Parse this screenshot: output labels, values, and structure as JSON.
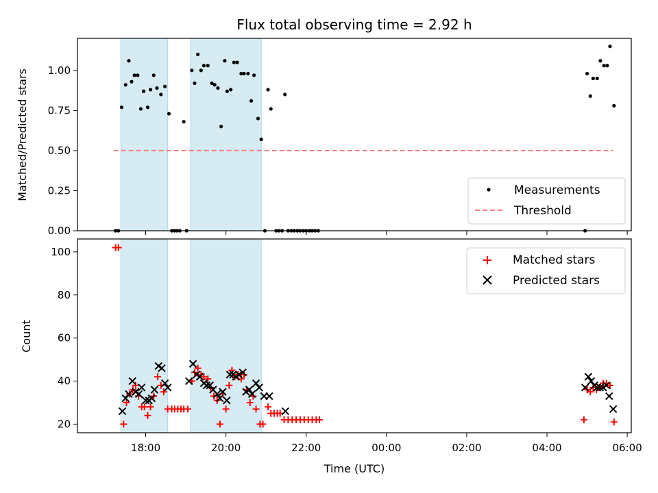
{
  "chart_data": {
    "type": "scatter",
    "title": "Flux total observing time = 2.92 h",
    "xlabel": "Time (UTC)",
    "x_range_hours": [
      16.3,
      30.1
    ],
    "x_ticks": [
      {
        "hour": 18,
        "label": "18:00"
      },
      {
        "hour": 20,
        "label": "20:00"
      },
      {
        "hour": 22,
        "label": "22:00"
      },
      {
        "hour": 24,
        "label": "00:00"
      },
      {
        "hour": 26,
        "label": "02:00"
      },
      {
        "hour": 28,
        "label": "04:00"
      },
      {
        "hour": 30,
        "label": "06:00"
      }
    ],
    "shaded_intervals_hours": [
      [
        17.38,
        18.55
      ],
      [
        19.12,
        20.88
      ]
    ],
    "colors": {
      "measurement": "#000000",
      "threshold": "#f08080",
      "matched": "#ff0000",
      "predicted": "#000000",
      "shade": "#add8e6"
    },
    "top_panel": {
      "ylabel": "Matched/Predicted stars",
      "ylim": [
        0,
        1.2
      ],
      "y_ticks": [
        "0.00",
        "0.25",
        "0.50",
        "0.75",
        "1.00"
      ],
      "y_tick_values": [
        0,
        0.25,
        0.5,
        0.75,
        1.0
      ],
      "threshold": {
        "value": 0.5,
        "x_start": 17.2,
        "x_end": 29.65
      },
      "legend": {
        "position": "lower-right",
        "entries": [
          "Measurements",
          "Threshold"
        ]
      },
      "measurements": [
        [
          17.25,
          0
        ],
        [
          17.32,
          0
        ],
        [
          17.4,
          0.77
        ],
        [
          17.5,
          0.91
        ],
        [
          17.58,
          1.06
        ],
        [
          17.65,
          0.93
        ],
        [
          17.72,
          0.97
        ],
        [
          17.8,
          0.97
        ],
        [
          17.88,
          0.76
        ],
        [
          17.95,
          0.87
        ],
        [
          18.05,
          0.77
        ],
        [
          18.12,
          0.88
        ],
        [
          18.2,
          0.97
        ],
        [
          18.28,
          0.89
        ],
        [
          18.38,
          0.85
        ],
        [
          18.48,
          0.9
        ],
        [
          18.58,
          0.73
        ],
        [
          18.65,
          0
        ],
        [
          18.72,
          0
        ],
        [
          18.78,
          0
        ],
        [
          18.85,
          0
        ],
        [
          18.95,
          0.68
        ],
        [
          19.02,
          0
        ],
        [
          19.15,
          1.0
        ],
        [
          19.22,
          0.92
        ],
        [
          19.3,
          1.1
        ],
        [
          19.38,
          1.0
        ],
        [
          19.45,
          1.03
        ],
        [
          19.55,
          1.03
        ],
        [
          19.65,
          0.92
        ],
        [
          19.72,
          0.91
        ],
        [
          19.8,
          0.89
        ],
        [
          19.88,
          0.65
        ],
        [
          19.97,
          1.06
        ],
        [
          20.03,
          0.87
        ],
        [
          20.12,
          0.88
        ],
        [
          20.2,
          1.05
        ],
        [
          20.28,
          1.05
        ],
        [
          20.38,
          0.98
        ],
        [
          20.45,
          0.98
        ],
        [
          20.55,
          0.98
        ],
        [
          20.63,
          0.81
        ],
        [
          20.7,
          0.97
        ],
        [
          20.8,
          0.7
        ],
        [
          20.88,
          0.57
        ],
        [
          20.97,
          0
        ],
        [
          21.05,
          0.88
        ],
        [
          21.12,
          0.76
        ],
        [
          21.25,
          0
        ],
        [
          21.32,
          0
        ],
        [
          21.4,
          0
        ],
        [
          21.47,
          0.85
        ],
        [
          21.55,
          0
        ],
        [
          21.63,
          0
        ],
        [
          21.7,
          0
        ],
        [
          21.78,
          0
        ],
        [
          21.85,
          0
        ],
        [
          21.93,
          0
        ],
        [
          22.0,
          0
        ],
        [
          22.08,
          0
        ],
        [
          22.15,
          0
        ],
        [
          22.22,
          0
        ],
        [
          22.3,
          0
        ],
        [
          28.95,
          0
        ],
        [
          29.0,
          0.98
        ],
        [
          29.08,
          0.84
        ],
        [
          29.15,
          0.95
        ],
        [
          29.25,
          0.95
        ],
        [
          29.33,
          1.06
        ],
        [
          29.42,
          1.03
        ],
        [
          29.5,
          1.03
        ],
        [
          29.57,
          1.15
        ],
        [
          29.67,
          0.78
        ]
      ]
    },
    "bottom_panel": {
      "ylabel": "Count",
      "ylim": [
        16,
        106
      ],
      "y_ticks": [
        "20",
        "40",
        "60",
        "80",
        "100"
      ],
      "y_tick_values": [
        20,
        40,
        60,
        80,
        100
      ],
      "legend": {
        "position": "top-right",
        "entries": [
          "Matched stars",
          "Predicted stars"
        ]
      },
      "matched": [
        [
          17.25,
          102
        ],
        [
          17.32,
          102
        ],
        [
          17.45,
          20
        ],
        [
          17.52,
          30
        ],
        [
          17.6,
          34
        ],
        [
          17.68,
          36
        ],
        [
          17.75,
          38
        ],
        [
          17.82,
          33
        ],
        [
          17.9,
          28
        ],
        [
          17.97,
          28
        ],
        [
          18.05,
          24
        ],
        [
          18.12,
          28
        ],
        [
          18.2,
          33
        ],
        [
          18.3,
          42
        ],
        [
          18.38,
          38
        ],
        [
          18.45,
          35
        ],
        [
          18.55,
          27
        ],
        [
          18.65,
          27
        ],
        [
          18.72,
          27
        ],
        [
          18.8,
          27
        ],
        [
          18.88,
          27
        ],
        [
          18.95,
          27
        ],
        [
          19.05,
          27
        ],
        [
          19.15,
          40
        ],
        [
          19.22,
          44
        ],
        [
          19.3,
          46
        ],
        [
          19.38,
          43
        ],
        [
          19.45,
          42
        ],
        [
          19.55,
          41
        ],
        [
          19.62,
          37
        ],
        [
          19.7,
          33
        ],
        [
          19.78,
          31
        ],
        [
          19.85,
          20
        ],
        [
          19.92,
          34
        ],
        [
          20.0,
          27
        ],
        [
          20.08,
          38
        ],
        [
          20.15,
          45
        ],
        [
          20.22,
          42
        ],
        [
          20.3,
          43
        ],
        [
          20.38,
          41
        ],
        [
          20.45,
          43
        ],
        [
          20.52,
          36
        ],
        [
          20.6,
          30
        ],
        [
          20.68,
          33
        ],
        [
          20.75,
          27
        ],
        [
          20.85,
          20
        ],
        [
          20.92,
          20
        ],
        [
          21.05,
          28
        ],
        [
          21.12,
          25
        ],
        [
          21.2,
          25
        ],
        [
          21.28,
          25
        ],
        [
          21.35,
          25
        ],
        [
          21.45,
          22
        ],
        [
          21.55,
          22
        ],
        [
          21.65,
          22
        ],
        [
          21.75,
          22
        ],
        [
          21.85,
          22
        ],
        [
          21.95,
          22
        ],
        [
          22.05,
          22
        ],
        [
          22.15,
          22
        ],
        [
          22.25,
          22
        ],
        [
          22.33,
          22
        ],
        [
          28.92,
          22
        ],
        [
          29.0,
          36
        ],
        [
          29.08,
          35
        ],
        [
          29.15,
          37
        ],
        [
          29.23,
          36
        ],
        [
          29.3,
          37
        ],
        [
          29.4,
          39
        ],
        [
          29.48,
          39
        ],
        [
          29.57,
          38
        ],
        [
          29.67,
          21
        ]
      ],
      "predicted": [
        [
          17.42,
          26
        ],
        [
          17.5,
          32
        ],
        [
          17.58,
          34
        ],
        [
          17.67,
          40
        ],
        [
          17.75,
          35
        ],
        [
          17.83,
          34
        ],
        [
          17.9,
          37
        ],
        [
          18.0,
          31
        ],
        [
          18.08,
          31
        ],
        [
          18.15,
          32
        ],
        [
          18.22,
          36
        ],
        [
          18.32,
          47
        ],
        [
          18.4,
          46
        ],
        [
          18.48,
          39
        ],
        [
          18.55,
          37
        ],
        [
          19.08,
          40
        ],
        [
          19.18,
          48
        ],
        [
          19.27,
          43
        ],
        [
          19.35,
          42
        ],
        [
          19.45,
          39
        ],
        [
          19.52,
          38
        ],
        [
          19.6,
          38
        ],
        [
          19.68,
          36
        ],
        [
          19.78,
          34
        ],
        [
          19.85,
          32
        ],
        [
          19.92,
          35
        ],
        [
          20.02,
          31
        ],
        [
          20.1,
          43
        ],
        [
          20.18,
          43
        ],
        [
          20.25,
          42
        ],
        [
          20.32,
          43
        ],
        [
          20.42,
          44
        ],
        [
          20.5,
          35
        ],
        [
          20.58,
          36
        ],
        [
          20.65,
          34
        ],
        [
          20.75,
          39
        ],
        [
          20.83,
          37
        ],
        [
          20.95,
          33
        ],
        [
          21.08,
          33
        ],
        [
          21.48,
          26
        ],
        [
          28.95,
          37
        ],
        [
          29.03,
          42
        ],
        [
          29.1,
          40
        ],
        [
          29.18,
          38
        ],
        [
          29.25,
          37
        ],
        [
          29.32,
          37
        ],
        [
          29.4,
          37
        ],
        [
          29.48,
          38
        ],
        [
          29.55,
          33
        ],
        [
          29.65,
          27
        ]
      ]
    }
  }
}
